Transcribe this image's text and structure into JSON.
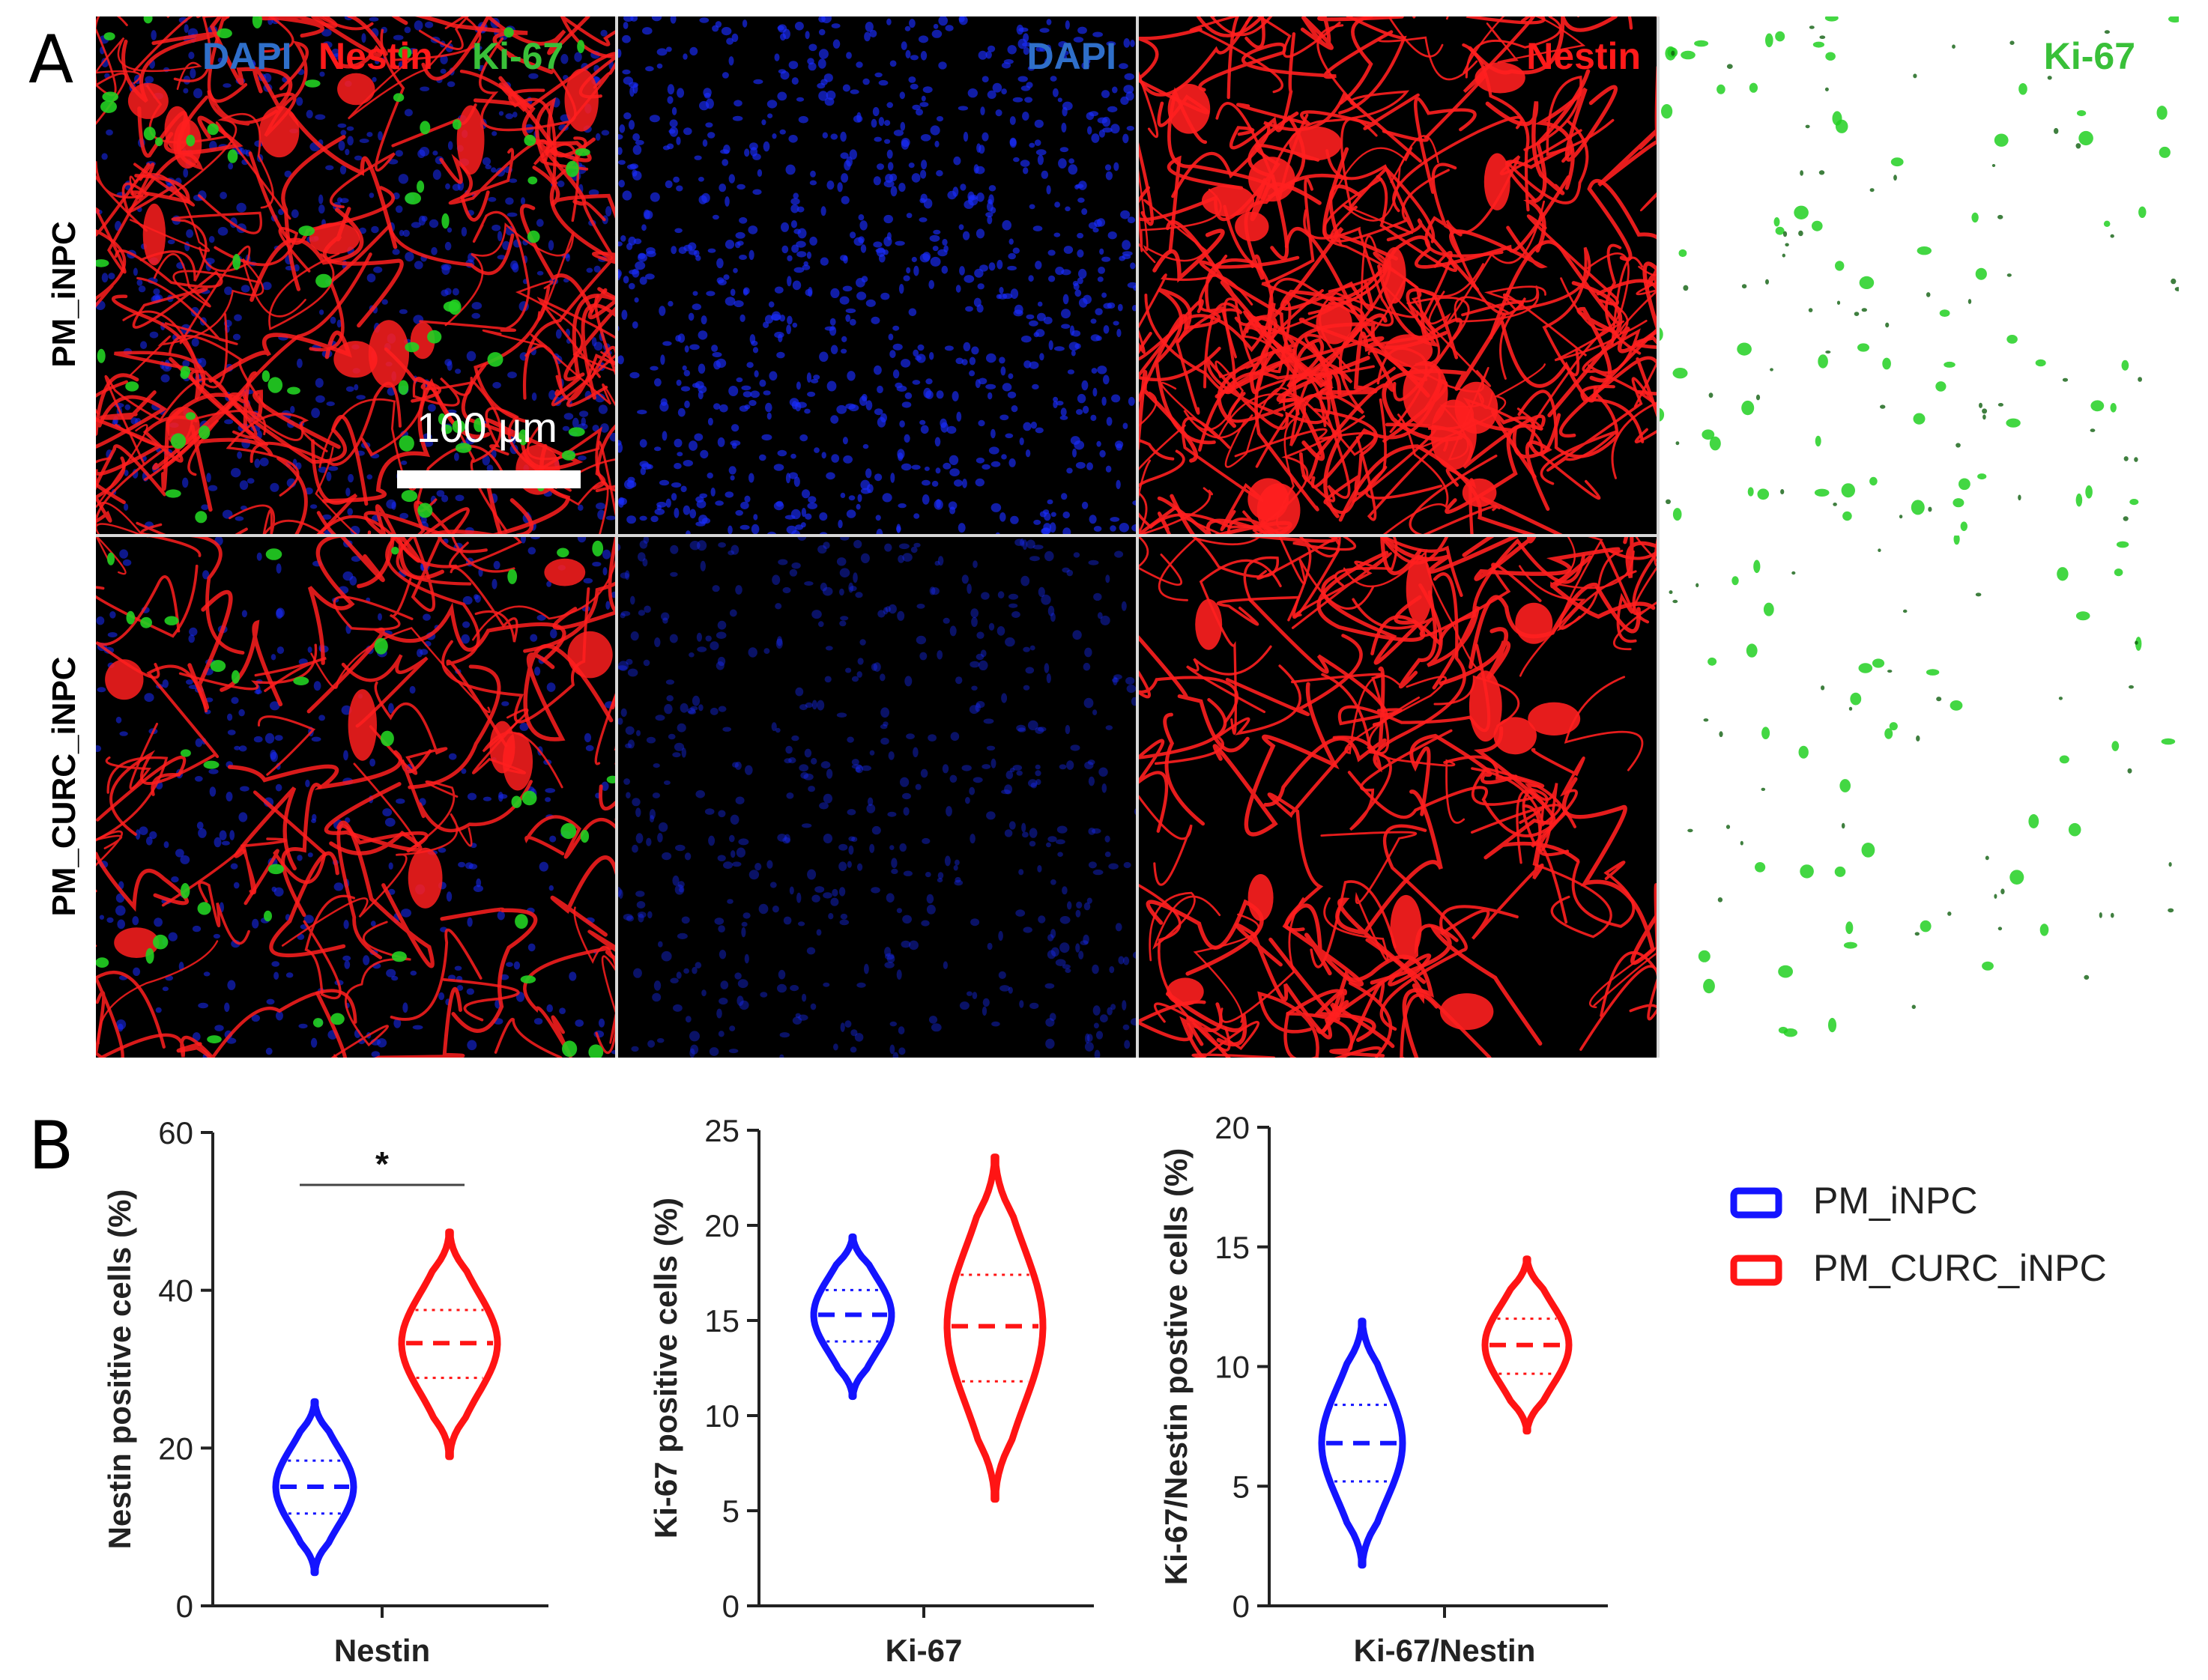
{
  "panel_labels": [
    "A",
    "B"
  ],
  "stain_labels": {
    "merged": [
      {
        "text": "DAPI",
        "color": "#2f6fc9"
      },
      {
        "text": "Nestin",
        "color": "#ff1a1a"
      },
      {
        "text": "Ki-67",
        "color": "#39c039"
      }
    ],
    "columns": [
      {
        "text": "DAPI",
        "color": "#2f6fc9"
      },
      {
        "text": "Nestin",
        "color": "#ff1a1a"
      },
      {
        "text": "Ki-67",
        "color": "#39c039"
      }
    ]
  },
  "row_labels": [
    "PM_iNPC",
    "PM_CURC_iNPC"
  ],
  "scale_bar": {
    "label": "100 µm"
  },
  "colors": {
    "pm_inpc": "#1414ff",
    "pm_curc_inpc": "#ff1414",
    "dapi": "#1a2cff",
    "nestin": "#ff1f1f",
    "ki67": "#22d022"
  },
  "legend": {
    "items": [
      {
        "label": "PM_iNPC",
        "color": "#1414ff"
      },
      {
        "label": "PM_CURC_iNPC",
        "color": "#ff1414"
      }
    ]
  },
  "chart_data": [
    {
      "type": "violin",
      "xlabel": "Nestin",
      "ylabel": "Nestin positive cells (%)",
      "ylim": [
        0,
        60
      ],
      "yticks": [
        0,
        20,
        40,
        60
      ],
      "significance": "*",
      "series": [
        {
          "name": "PM_iNPC",
          "min": 4.2,
          "q1": 11.7,
          "median": 15.1,
          "q3": 18.4,
          "max": 25.9
        },
        {
          "name": "PM_CURC_iNPC",
          "min": 18.9,
          "q1": 28.9,
          "median": 33.3,
          "q3": 37.5,
          "max": 47.4
        }
      ]
    },
    {
      "type": "violin",
      "xlabel": "Ki-67",
      "ylabel": "Ki-67 positive cells (%)",
      "ylim": [
        0,
        25
      ],
      "yticks": [
        0,
        5,
        10,
        15,
        20,
        25
      ],
      "series": [
        {
          "name": "PM_iNPC",
          "min": 11.0,
          "q1": 13.9,
          "median": 15.3,
          "q3": 16.6,
          "max": 19.4
        },
        {
          "name": "PM_CURC_iNPC",
          "min": 5.6,
          "q1": 11.8,
          "median": 14.7,
          "q3": 17.4,
          "max": 23.6
        }
      ]
    },
    {
      "type": "violin",
      "xlabel": "Ki-67/Nestin",
      "ylabel": "Ki-67/Nestin postive cells (%)",
      "ylim": [
        0,
        20
      ],
      "yticks": [
        0,
        5,
        10,
        15,
        20
      ],
      "series": [
        {
          "name": "PM_iNPC",
          "min": 1.7,
          "q1": 5.2,
          "median": 6.8,
          "q3": 8.4,
          "max": 11.9
        },
        {
          "name": "PM_CURC_iNPC",
          "min": 7.3,
          "q1": 9.7,
          "median": 10.9,
          "q3": 12.0,
          "max": 14.5
        }
      ]
    }
  ]
}
